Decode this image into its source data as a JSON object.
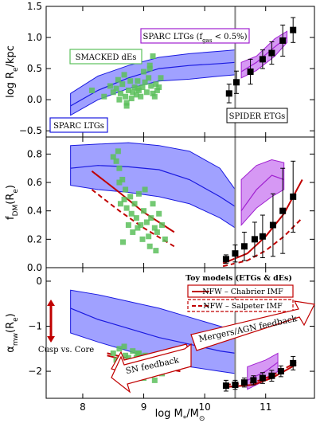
{
  "chart_data": [
    {
      "panel": "top",
      "type": "line",
      "xlim": [
        7.4,
        11.8
      ],
      "ylim": [
        -0.6,
        1.5
      ],
      "yticks": [
        "−0.5",
        "0.0",
        "0.5",
        "1.0",
        "1.5"
      ],
      "ylabel": "log R",
      "ylabel_sub": "e",
      "ylabel_suffix": "/kpc",
      "vline_x": 10.5,
      "blue_band": {
        "x": [
          7.8,
          8.25,
          8.75,
          9.25,
          9.75,
          10.25,
          10.5
        ],
        "lower": [
          -0.25,
          0.0,
          0.18,
          0.3,
          0.33,
          0.38,
          0.4
        ],
        "upper": [
          0.1,
          0.38,
          0.55,
          0.68,
          0.74,
          0.78,
          0.8
        ],
        "mid": [
          -0.1,
          0.15,
          0.35,
          0.5,
          0.55,
          0.58,
          0.6
        ]
      },
      "purple_band": {
        "x": [
          10.6,
          10.85,
          11.15,
          11.35
        ],
        "lower": [
          0.35,
          0.47,
          0.7,
          0.92
        ],
        "upper": [
          0.6,
          0.7,
          0.98,
          1.1
        ],
        "mid": [
          0.45,
          0.6,
          0.85,
          1.0
        ]
      },
      "green_points": {
        "x": [
          8.15,
          8.35,
          8.45,
          8.5,
          8.55,
          8.6,
          8.62,
          8.65,
          8.7,
          8.72,
          8.75,
          8.78,
          8.8,
          8.82,
          8.85,
          8.88,
          8.9,
          8.92,
          8.95,
          8.98,
          9.0,
          9.02,
          9.05,
          9.08,
          9.1,
          9.12,
          9.15,
          9.18,
          9.2,
          9.22,
          9.25,
          9.28,
          8.68,
          8.72,
          8.58,
          9.1,
          9.15,
          8.9
        ],
        "y": [
          0.15,
          0.05,
          0.22,
          0.12,
          0.18,
          0.0,
          0.1,
          0.25,
          0.05,
          -0.05,
          0.15,
          0.3,
          0.02,
          0.12,
          0.2,
          0.08,
          0.3,
          0.15,
          0.05,
          0.2,
          0.45,
          0.28,
          0.12,
          0.35,
          0.5,
          0.22,
          0.1,
          0.05,
          0.25,
          0.15,
          0.2,
          0.35,
          0.4,
          -0.1,
          0.32,
          0.55,
          0.7,
          0.18
        ]
      },
      "black_points": {
        "x": [
          10.4,
          10.52,
          10.75,
          10.95,
          11.1,
          11.28,
          11.45
        ],
        "y": [
          0.1,
          0.28,
          0.45,
          0.65,
          0.75,
          0.95,
          1.12
        ],
        "err": [
          0.15,
          0.18,
          0.2,
          0.15,
          0.18,
          0.25,
          0.2
        ]
      },
      "labels": {
        "smacked": "SMACKED dEs",
        "sparc_ltgs": "SPARC LTGs",
        "sparc_gas": "SPARC LTGs (f",
        "sparc_gas_sub": "gas",
        "sparc_gas_tail": " < 0.5%)",
        "spider": "SPIDER ETGs"
      }
    },
    {
      "panel": "middle",
      "type": "line",
      "xlim": [
        7.4,
        11.8
      ],
      "ylim": [
        0.0,
        0.92
      ],
      "yticks": [
        "0.0",
        "0.2",
        "0.4",
        "0.6",
        "0.8"
      ],
      "ylabel": "f",
      "ylabel_sub": "DM",
      "ylabel_suffix": "(R",
      "ylabel_sub2": "e",
      "ylabel_end": ")",
      "vline_x": 10.5,
      "blue_band": {
        "x": [
          7.8,
          8.25,
          8.75,
          9.25,
          9.75,
          10.25,
          10.5
        ],
        "lower": [
          0.58,
          0.55,
          0.53,
          0.5,
          0.45,
          0.35,
          0.28
        ],
        "upper": [
          0.86,
          0.87,
          0.88,
          0.86,
          0.82,
          0.7,
          0.55
        ],
        "mid": [
          0.7,
          0.72,
          0.71,
          0.69,
          0.62,
          0.5,
          0.43
        ]
      },
      "purple_band": {
        "x": [
          10.6,
          10.85,
          11.1,
          11.3
        ],
        "lower": [
          0.3,
          0.42,
          0.5,
          0.55
        ],
        "upper": [
          0.62,
          0.72,
          0.76,
          0.74
        ],
        "mid": [
          0.4,
          0.55,
          0.65,
          0.62
        ]
      },
      "red_solid": {
        "x": [
          8.15,
          8.6,
          9.0,
          9.5
        ],
        "y": [
          0.68,
          0.53,
          0.39,
          0.25
        ]
      },
      "red_dashed": {
        "x": [
          8.15,
          8.6,
          9.0,
          9.5
        ],
        "y": [
          0.55,
          0.4,
          0.28,
          0.15
        ]
      },
      "red_solid_high": {
        "x": [
          10.3,
          10.7,
          11.0,
          11.3,
          11.6
        ],
        "y": [
          0.03,
          0.1,
          0.22,
          0.38,
          0.62
        ]
      },
      "red_dashed_high": {
        "x": [
          10.3,
          10.7,
          11.0,
          11.3,
          11.6
        ],
        "y": [
          0.01,
          0.05,
          0.12,
          0.22,
          0.35
        ]
      },
      "green_points": {
        "x": [
          8.5,
          8.55,
          8.6,
          8.62,
          8.65,
          8.68,
          8.7,
          8.72,
          8.75,
          8.78,
          8.8,
          8.82,
          8.85,
          8.88,
          8.9,
          8.92,
          8.95,
          8.98,
          9.0,
          9.02,
          9.05,
          9.08,
          9.1,
          9.12,
          9.15,
          9.18,
          9.2,
          9.22,
          9.25,
          8.58,
          8.66,
          9.3,
          9.35,
          8.6
        ],
        "y": [
          0.78,
          0.75,
          0.7,
          0.45,
          0.62,
          0.48,
          0.55,
          0.42,
          0.3,
          0.5,
          0.38,
          0.25,
          0.45,
          0.35,
          0.28,
          0.52,
          0.3,
          0.2,
          0.4,
          0.55,
          0.32,
          0.22,
          0.15,
          0.35,
          0.45,
          0.28,
          0.12,
          0.25,
          0.38,
          0.82,
          0.18,
          0.3,
          0.2,
          0.6
        ]
      },
      "black_points": {
        "x": [
          10.35,
          10.5,
          10.65,
          10.82,
          10.95,
          11.12,
          11.28,
          11.45
        ],
        "y": [
          0.06,
          0.1,
          0.15,
          0.2,
          0.22,
          0.3,
          0.4,
          0.5
        ],
        "err": [
          0.03,
          0.06,
          0.1,
          0.12,
          0.15,
          0.22,
          0.3,
          0.25
        ]
      }
    },
    {
      "panel": "bottom",
      "type": "line",
      "xlim": [
        7.4,
        11.8
      ],
      "ylim": [
        -2.6,
        0.3
      ],
      "yticks": [
        "−2",
        "−1",
        "0"
      ],
      "xticks": [
        "8",
        "9",
        "10",
        "11"
      ],
      "xlabel": "log M",
      "xlabel_sub": "*",
      "xlabel_suffix": "/M",
      "xlabel_sub2": "⊙",
      "ylabel": "α",
      "ylabel_sub": "mw",
      "ylabel_suffix": "(R",
      "ylabel_sub2": "e",
      "ylabel_end": ")",
      "vline_x": 10.5,
      "blue_band": {
        "x": [
          7.8,
          8.25,
          8.75,
          9.25,
          9.75,
          10.25,
          10.5
        ],
        "lower": [
          -1.15,
          -1.35,
          -1.55,
          -1.75,
          -1.9,
          -2.0,
          -2.05
        ],
        "upper": [
          -0.2,
          -0.3,
          -0.45,
          -0.6,
          -0.8,
          -1.0,
          -1.1
        ],
        "mid": [
          -0.6,
          -0.85,
          -1.05,
          -1.25,
          -1.4,
          -1.55,
          -1.6
        ]
      },
      "purple_band": {
        "x": [
          10.7,
          11.0,
          11.2
        ],
        "lower": [
          -2.4,
          -2.2,
          -2.0
        ],
        "upper": [
          -1.9,
          -1.75,
          -1.6
        ],
        "mid": [
          -2.2,
          -2.0,
          -1.8
        ]
      },
      "red_solid": {
        "x": [
          8.4,
          9.0,
          9.6
        ],
        "y": [
          -1.65,
          -1.85,
          -2.0
        ]
      },
      "red_dashed": {
        "x": [
          8.4,
          9.0,
          9.6
        ],
        "y": [
          -1.6,
          -1.8,
          -1.95
        ]
      },
      "red_solid_high": {
        "x": [
          10.35,
          10.8,
          11.1,
          11.5
        ],
        "y": [
          -2.35,
          -2.3,
          -2.15,
          -1.85
        ]
      },
      "red_dashed_high": {
        "x": [
          10.35,
          10.8,
          11.1,
          11.5
        ],
        "y": [
          -2.3,
          -2.25,
          -2.1,
          -1.8
        ]
      },
      "green_points": {
        "x": [
          8.5,
          8.55,
          8.6,
          8.65,
          8.7,
          8.72,
          8.75,
          8.78,
          8.8,
          8.82,
          8.85,
          8.88,
          8.9,
          8.92,
          8.95,
          8.98,
          9.0,
          9.02,
          9.05,
          9.08,
          9.1,
          9.12,
          9.15,
          9.18,
          9.2,
          8.62,
          8.68,
          8.9,
          9.25,
          9.3
        ],
        "y": [
          -1.6,
          -1.75,
          -1.5,
          -1.85,
          -1.65,
          -1.95,
          -1.7,
          -2.05,
          -1.8,
          -1.55,
          -1.9,
          -1.7,
          -2.1,
          -1.6,
          -1.85,
          -1.75,
          -2.15,
          -1.65,
          -1.9,
          -1.8,
          -2.0,
          -1.7,
          -1.85,
          -2.2,
          -1.95,
          -2.0,
          -1.45,
          -1.6,
          -1.75,
          -2.05
        ]
      },
      "black_points": {
        "x": [
          10.35,
          10.5,
          10.65,
          10.8,
          10.95,
          11.1,
          11.25,
          11.45
        ],
        "y": [
          -2.32,
          -2.3,
          -2.25,
          -2.2,
          -2.15,
          -2.1,
          -2.0,
          -1.82
        ],
        "err": [
          0.12,
          0.1,
          0.1,
          0.1,
          0.12,
          0.12,
          0.12,
          0.15
        ]
      },
      "labels": {
        "toy_models": "Toy models (ETGs & dEs)",
        "chabrier": "NFW – Chabrier IMF",
        "salpeter": "NFW – Salpeter IMF",
        "mergers": "Mergers/AGN feedback",
        "sn": "SN feedback",
        "cusp_core": "Cusp vs. Core"
      }
    }
  ],
  "colors": {
    "blue_fill": "#8f90ff",
    "blue_line": "#1a1ae0",
    "purple_fill": "#cf86f2",
    "purple_line": "#a020d0",
    "green": "#5cc05c",
    "red": "#c00000",
    "black": "#000000",
    "vline": "#888888"
  }
}
